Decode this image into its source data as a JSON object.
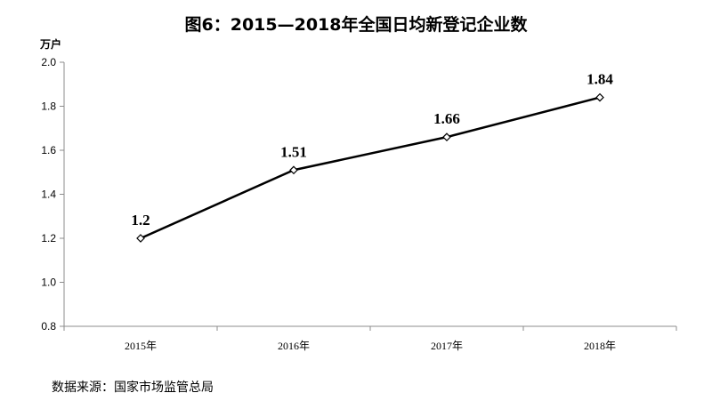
{
  "chart_data": {
    "type": "line",
    "title": "图6：2015—2018年全国日均新登记企业数",
    "ylabel": "万户",
    "xlabel": "",
    "categories": [
      "2015年",
      "2016年",
      "2017年",
      "2018年"
    ],
    "series": [
      {
        "values": [
          1.2,
          1.51,
          1.66,
          1.84
        ],
        "data_labels": [
          "1.2",
          "1.51",
          "1.66",
          "1.84"
        ]
      }
    ],
    "ylim": [
      0.8,
      2.0
    ],
    "yticks": [
      "0.8",
      "1.0",
      "1.2",
      "1.4",
      "1.6",
      "1.8",
      "2.0"
    ],
    "grid": false,
    "legend": "none",
    "line_color": "#000000",
    "marker": "diamond-hollow"
  },
  "source": "数据来源：国家市场监管总局"
}
